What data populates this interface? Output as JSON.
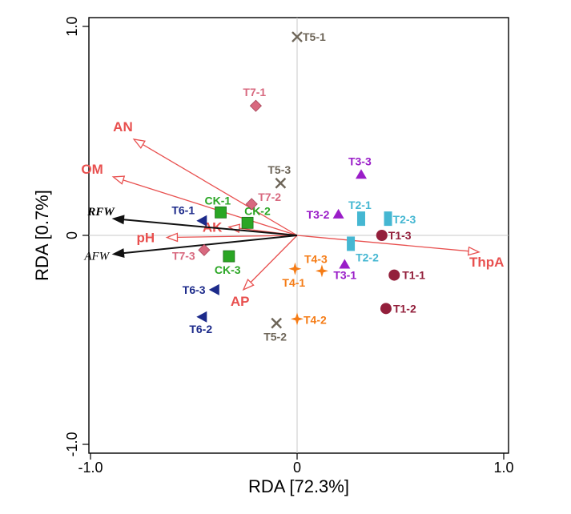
{
  "chart_data": {
    "type": "scatter",
    "title": "",
    "xlabel": "RDA [72.3%]",
    "ylabel": "RDA [0.7%]",
    "xlim": [
      -1.02,
      1.02
    ],
    "ylim": [
      -1.02,
      1.02
    ],
    "x_ticks": [
      {
        "value": -1.0,
        "label": "-1.0"
      },
      {
        "value": 0,
        "label": "0"
      },
      {
        "value": 1.0,
        "label": "1.0"
      }
    ],
    "y_ticks": [
      {
        "value": -1.0,
        "label": "-1.0"
      },
      {
        "value": 0,
        "label": "0"
      },
      {
        "value": 1.0,
        "label": "1.0"
      }
    ],
    "grid": false,
    "reference_lines": {
      "x": 0,
      "y": 0,
      "color": "#c8c8c8"
    },
    "env_vectors": [
      {
        "label": "AN",
        "x": -0.79,
        "y": 0.46
      },
      {
        "label": "OM",
        "x": -0.89,
        "y": 0.28
      },
      {
        "label": "AK",
        "x": -0.33,
        "y": 0.04
      },
      {
        "label": "pH",
        "x": -0.63,
        "y": -0.01
      },
      {
        "label": "AP",
        "x": -0.26,
        "y": -0.26
      },
      {
        "label": "ThpA",
        "x": 0.88,
        "y": -0.08
      }
    ],
    "env_color": "#e8504f",
    "trait_vectors": [
      {
        "label": "RFW",
        "x": -0.89,
        "y": 0.08
      },
      {
        "label": "AFW",
        "x": -0.89,
        "y": -0.09
      }
    ],
    "trait_color": "#111111",
    "groups": [
      {
        "name": "CK",
        "shape": "square",
        "color": "#2aa624",
        "label_color": "#2aa624",
        "points": [
          {
            "label": "CK-1",
            "x": -0.37,
            "y": 0.11
          },
          {
            "label": "CK-2",
            "x": -0.24,
            "y": 0.06
          },
          {
            "label": "CK-3",
            "x": -0.33,
            "y": -0.1
          }
        ]
      },
      {
        "name": "T1",
        "shape": "circle",
        "color": "#931f3b",
        "label_color": "#931f3b",
        "points": [
          {
            "label": "T1-1",
            "x": 0.47,
            "y": -0.19
          },
          {
            "label": "T1-2",
            "x": 0.43,
            "y": -0.35
          },
          {
            "label": "T1-3",
            "x": 0.41,
            "y": 0.0
          }
        ]
      },
      {
        "name": "T2",
        "shape": "rect",
        "color": "#45b7d2",
        "label_color": "#45b7d2",
        "points": [
          {
            "label": "T2-1",
            "x": 0.31,
            "y": 0.08
          },
          {
            "label": "T2-2",
            "x": 0.26,
            "y": -0.04
          },
          {
            "label": "T2-3",
            "x": 0.44,
            "y": 0.08
          }
        ]
      },
      {
        "name": "T3",
        "shape": "triangle-up",
        "color": "#9a1dc8",
        "label_color": "#9a1dc8",
        "points": [
          {
            "label": "T3-1",
            "x": 0.23,
            "y": -0.14
          },
          {
            "label": "T3-2",
            "x": 0.2,
            "y": 0.1
          },
          {
            "label": "T3-3",
            "x": 0.31,
            "y": 0.29
          }
        ]
      },
      {
        "name": "T4",
        "shape": "star4",
        "color": "#f57c16",
        "label_color": "#f57c16",
        "points": [
          {
            "label": "T4-1",
            "x": -0.01,
            "y": -0.16
          },
          {
            "label": "T4-2",
            "x": 0.0,
            "y": -0.4
          },
          {
            "label": "T4-3",
            "x": 0.12,
            "y": -0.17
          }
        ]
      },
      {
        "name": "T5",
        "shape": "cross",
        "color": "#6e6659",
        "label_color": "#6e6659",
        "points": [
          {
            "label": "T5-1",
            "x": 0.0,
            "y": 0.95
          },
          {
            "label": "T5-2",
            "x": -0.1,
            "y": -0.42
          },
          {
            "label": "T5-3",
            "x": -0.08,
            "y": 0.25
          }
        ]
      },
      {
        "name": "T6",
        "shape": "triangle-left",
        "color": "#1c2a8a",
        "label_color": "#1c2a8a",
        "points": [
          {
            "label": "T6-1",
            "x": -0.46,
            "y": 0.07
          },
          {
            "label": "T6-2",
            "x": -0.46,
            "y": -0.39
          },
          {
            "label": "T6-3",
            "x": -0.4,
            "y": -0.26
          }
        ]
      },
      {
        "name": "T7",
        "shape": "diamond",
        "color": "#d8697f",
        "label_color": "#d8697f",
        "points": [
          {
            "label": "T7-1",
            "x": -0.2,
            "y": 0.62
          },
          {
            "label": "T7-2",
            "x": -0.22,
            "y": 0.15
          },
          {
            "label": "T7-3",
            "x": -0.45,
            "y": -0.07
          }
        ]
      }
    ]
  }
}
